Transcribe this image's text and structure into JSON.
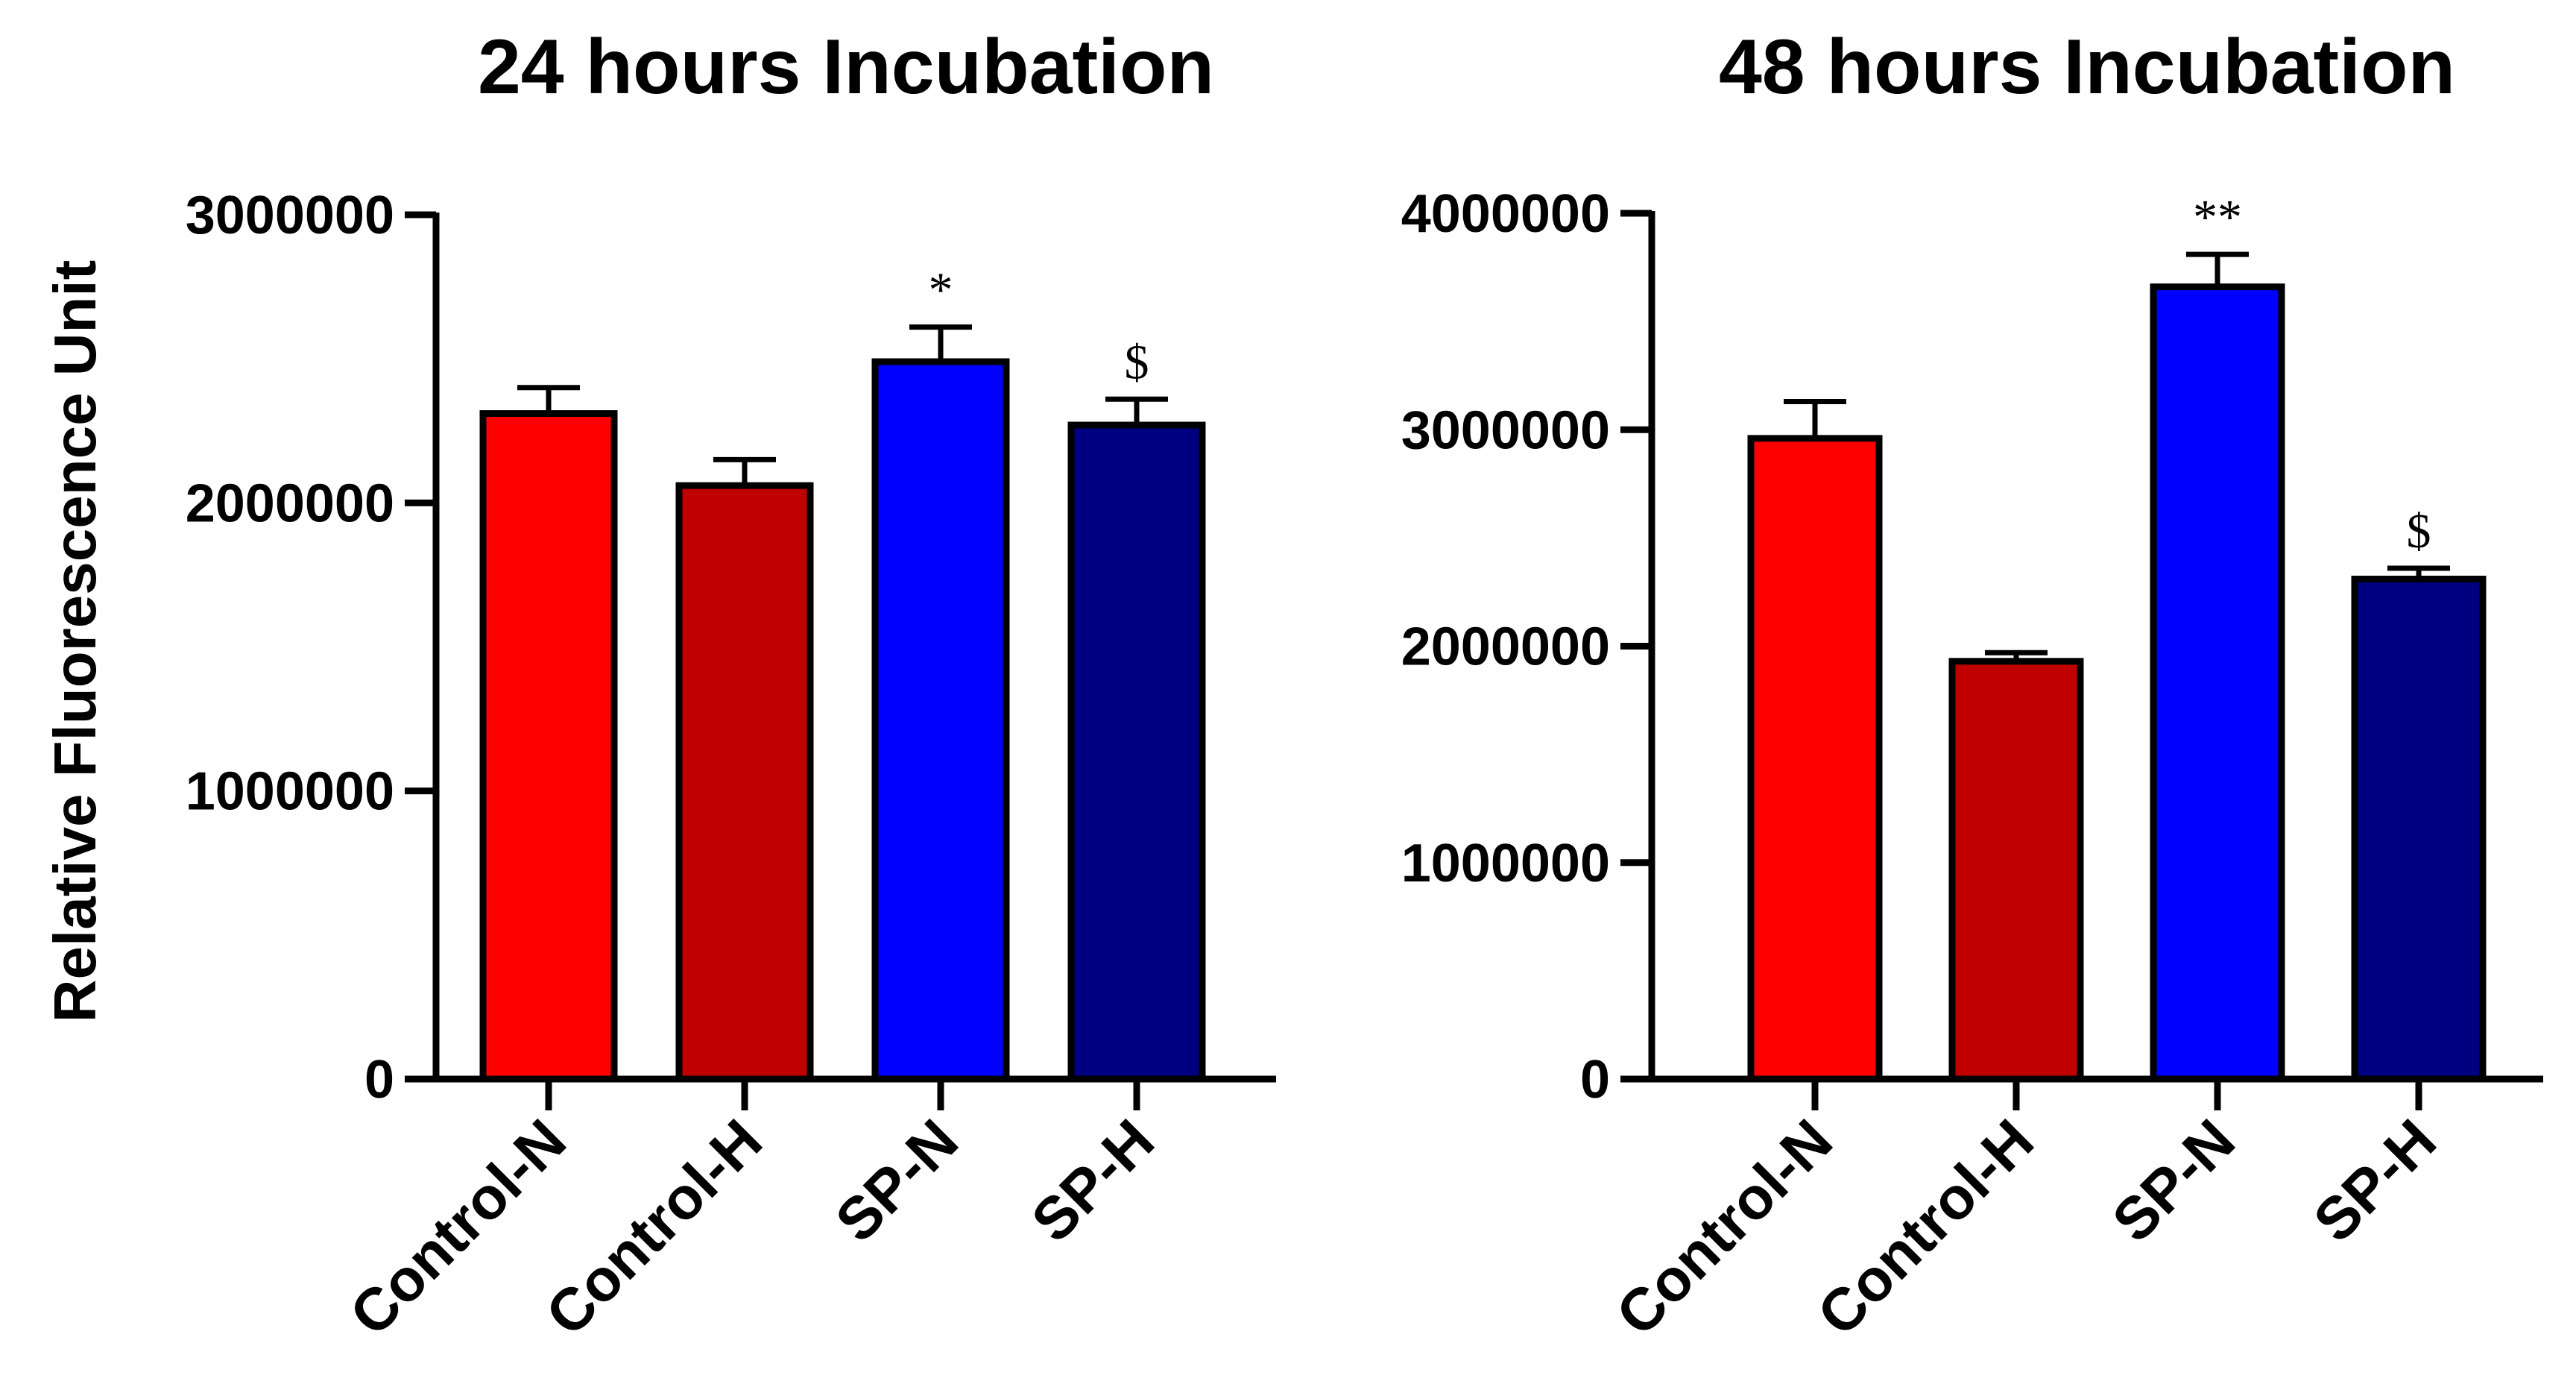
{
  "chart_data": [
    {
      "type": "bar",
      "title": "24 hours Incubation",
      "ylabel": "Relative Fluorescence Unit",
      "xlabel": "",
      "categories": [
        "Control-N",
        "Control-H",
        "SP-N",
        "SP-H"
      ],
      "values": [
        2310000,
        2060000,
        2490000,
        2270000
      ],
      "errors": [
        90000,
        90000,
        120000,
        90000
      ],
      "markers": [
        "",
        "",
        "*",
        "$"
      ],
      "colors": [
        "#ff0000",
        "#c00000",
        "#0000ff",
        "#000080"
      ],
      "ylim": [
        0,
        3000000
      ],
      "yticks": [
        "0",
        "1000000",
        "2000000",
        "3000000"
      ],
      "grid": false,
      "legend": "none"
    },
    {
      "type": "bar",
      "title": "48 hours Incubation",
      "ylabel": "",
      "xlabel": "",
      "categories": [
        "Control-N",
        "Control-H",
        "SP-N",
        "SP-H"
      ],
      "values": [
        2960000,
        1930000,
        3660000,
        2310000
      ],
      "errors": [
        170000,
        40000,
        150000,
        50000
      ],
      "markers": [
        "",
        "",
        "**",
        "$"
      ],
      "colors": [
        "#ff0000",
        "#c00000",
        "#0000ff",
        "#000080"
      ],
      "ylim": [
        0,
        4000000
      ],
      "yticks": [
        "0",
        "1000000",
        "2000000",
        "3000000",
        "4000000"
      ],
      "grid": false,
      "legend": "none"
    }
  ]
}
